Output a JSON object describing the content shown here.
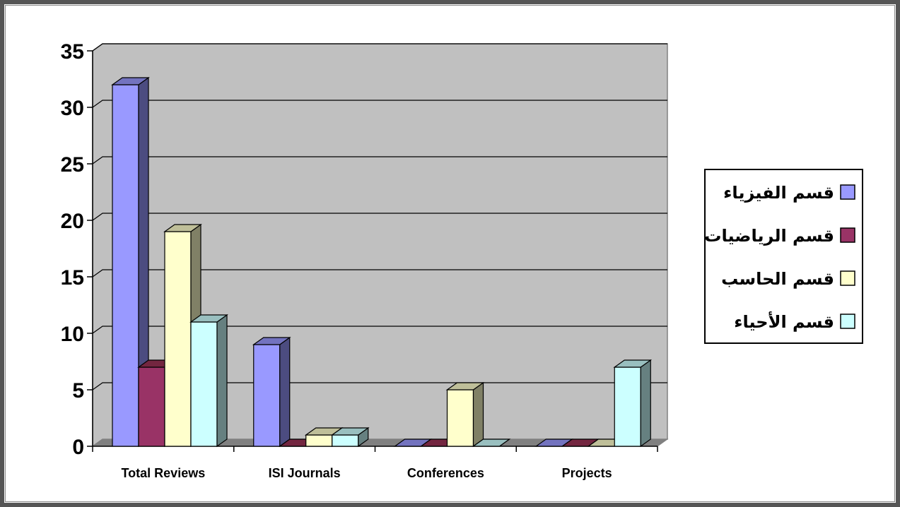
{
  "chart_data": {
    "type": "bar",
    "title": "",
    "xlabel": "",
    "ylabel": "",
    "categories": [
      "Total Reviews",
      "ISI Journals",
      "Conferences",
      "Projects"
    ],
    "series": [
      {
        "name": "قسم الفيزياء",
        "values": [
          32,
          9,
          0,
          0
        ]
      },
      {
        "name": "قسم الرياضيات",
        "values": [
          7,
          0,
          0,
          0
        ]
      },
      {
        "name": "قسم الحاسب",
        "values": [
          19,
          1,
          5,
          0
        ]
      },
      {
        "name": "قسم الأحياء",
        "values": [
          11,
          1,
          0,
          7
        ]
      }
    ],
    "ylim": [
      0,
      35
    ],
    "yticks": [
      "0",
      "5",
      "10",
      "15",
      "20",
      "25",
      "30",
      "35"
    ],
    "grid": true,
    "legend_position": "right",
    "style": "3d-clustered-column",
    "colors": {
      "series": [
        "#9999ff",
        "#993366",
        "#ffffcc",
        "#ccffff"
      ],
      "series_side": [
        "#4c4c80",
        "#4d1a33",
        "#808066",
        "#668080"
      ],
      "series_top": [
        "#7373bf",
        "#732640",
        "#bfbf99",
        "#99bfbf"
      ],
      "wall": "#c0c0c0",
      "wall_edge": "#808080",
      "floor": "#808080",
      "gridline": "#000000"
    }
  }
}
